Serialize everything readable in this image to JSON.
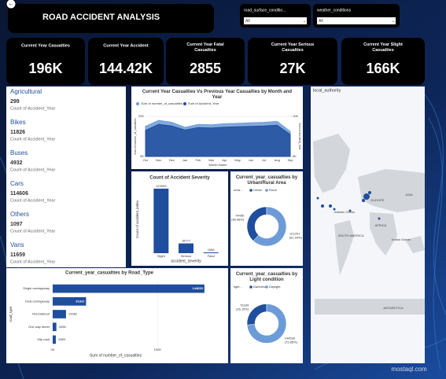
{
  "header": {
    "title": "ROAD ACCIDENT ANALYSIS"
  },
  "slicers": [
    {
      "label": "road_surface_conditio...",
      "value": "All"
    },
    {
      "label": "weather_conditions",
      "value": "All"
    }
  ],
  "kpis": [
    {
      "label": "Current Year Casualties",
      "value": "196K"
    },
    {
      "label": "Current Year Accident",
      "value": "144.42K"
    },
    {
      "label": "Current Year Fatal Casualties",
      "value": "2855"
    },
    {
      "label": "Current Year Serious Casualties",
      "value": "27K"
    },
    {
      "label": "Current Year Slight Casualties",
      "value": "166K"
    }
  ],
  "vehicles": {
    "measure": "Count of Accident_Year",
    "items": [
      {
        "name": "Agricultural",
        "value": 299
      },
      {
        "name": "Bikes",
        "value": 11826
      },
      {
        "name": "Buses",
        "value": 4932
      },
      {
        "name": "Cars",
        "value": 114606
      },
      {
        "name": "Others",
        "value": 1097
      },
      {
        "name": "Vans",
        "value": 11659
      }
    ]
  },
  "map": {
    "title": "local_authority",
    "labels": [
      "ASIA",
      "EUROPE",
      "Atlantic Ocean",
      "AFRICA",
      "SOUTH AMERICA",
      "Indian Ocean",
      "ANTARCTICA"
    ]
  },
  "watermark": "mostaql.com",
  "chart_data": [
    {
      "type": "line",
      "title": "Current Year Casualties Vs Previous Year Casualties by Month and Year",
      "categories": [
        "Oct",
        "Nov",
        "Dec",
        "Jan",
        "Feb",
        "Mar",
        "Apr",
        "May",
        "Jun",
        "Jul",
        "Aug",
        "Sep"
      ],
      "series": [
        {
          "name": "Sum of number_of_casualties",
          "color": "#6d9bd8",
          "values": [
            15000,
            18000,
            17000,
            14500,
            16000,
            15800,
            16300,
            16500,
            16800,
            17000,
            17500,
            12500
          ]
        },
        {
          "name": "Sum of Accident_Year",
          "color": "#1f4e9c",
          "axis": "y2",
          "values": [
            6500,
            8000,
            7600,
            6600,
            7200,
            7100,
            7300,
            7400,
            7500,
            7600,
            7800,
            5500
          ]
        }
      ],
      "xlabel": "Month Name",
      "ylabel": "Sum of number_of_casualties",
      "y2label": "Sum of Accident_Year",
      "ylim": [
        0,
        20000
      ],
      "yticks": [
        {
          "value": 0,
          "label": "0K"
        },
        {
          "value": 20000,
          "label": "20K"
        }
      ],
      "y2lim": [
        0,
        10000
      ],
      "y2ticks": [
        {
          "value": 0,
          "label": "0K"
        },
        {
          "value": 10000,
          "label": "10K"
        }
      ]
    },
    {
      "type": "bar",
      "title": "Count of Accident Severity",
      "categories": [
        "Slight",
        "Serious",
        "Fatal"
      ],
      "values": [
        124093,
        18777,
        1556
      ],
      "color": "#1f4e9c",
      "xlabel": "accident_severity",
      "ylabel": "Count of accident_index",
      "ylim": [
        0,
        130000
      ]
    },
    {
      "type": "donut",
      "title": "Current_year_casualties by Urban/Rural Area",
      "legend_title": "urba...",
      "categories": [
        "Urban",
        "Rural"
      ],
      "values": [
        74466,
        121201
      ],
      "value_labels": [
        "74466 (38.06%)",
        "121201 (61.94%)"
      ],
      "colors": [
        "#1f4e9c",
        "#6d9bd8"
      ]
    },
    {
      "type": "hbar",
      "title": "Current_year_casualties by Road_Type",
      "categories": [
        "Single carriageway",
        "Dual carriageway",
        "Roundabout",
        "One way street",
        "Slip road"
      ],
      "values": [
        144653,
        31812,
        12682,
        3498,
        2989
      ],
      "color": "#1f4e9c",
      "xlabel": "Sum of number_of_casualties",
      "ylabel": "road_type",
      "xlim": [
        0,
        150000
      ],
      "xticks": [
        {
          "value": 0,
          "label": "0K"
        },
        {
          "value": 100000,
          "label": "100K"
        }
      ]
    },
    {
      "type": "donut",
      "title": "Current_year_casualties by Light condition",
      "legend_title": "light...",
      "categories": [
        "Darkness",
        "Daylight"
      ],
      "values": [
        51189,
        144539
      ],
      "value_labels": [
        "51189 (26.15%)",
        "144539 (73.85%)"
      ],
      "colors": [
        "#1f4e9c",
        "#6d9bd8"
      ]
    }
  ]
}
